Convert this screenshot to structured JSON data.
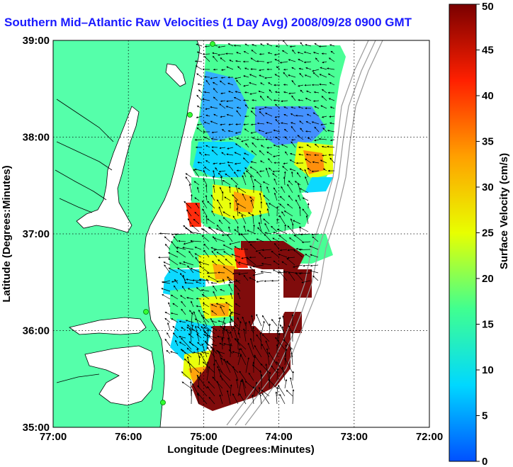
{
  "title": "Southern Mid–Atlantic Raw Velocities (1 Day Avg) 2008/09/28 0900 GMT",
  "x_axis": {
    "label": "Longitude (Degrees:Minutes)",
    "ticks": [
      "77:00",
      "76:00",
      "75:00",
      "74:00",
      "73:00",
      "72:00"
    ],
    "range": [
      -77,
      -72
    ]
  },
  "y_axis": {
    "label": "Latitude (Degrees:Minutes)",
    "ticks": [
      "39:00",
      "38:00",
      "37:00",
      "36:00",
      "35:00"
    ],
    "range": [
      35,
      39
    ]
  },
  "colorbar": {
    "label": "Surface Velocity (cm/s)",
    "ticks": [
      "50",
      "45",
      "40",
      "35",
      "30",
      "25",
      "20",
      "15",
      "10",
      "5",
      "0"
    ],
    "range": [
      0,
      50
    ],
    "colors": [
      "#0050ff",
      "#00d8ff",
      "#40ff90",
      "#e8ff00",
      "#ffa000",
      "#ff2000",
      "#7a0000"
    ]
  },
  "colors": {
    "land": "#55ffaa",
    "water": "#ffffff",
    "title": "#1a1aff",
    "grid": "#000000",
    "bathymetry": "#9a9a9a"
  },
  "grid": true
}
